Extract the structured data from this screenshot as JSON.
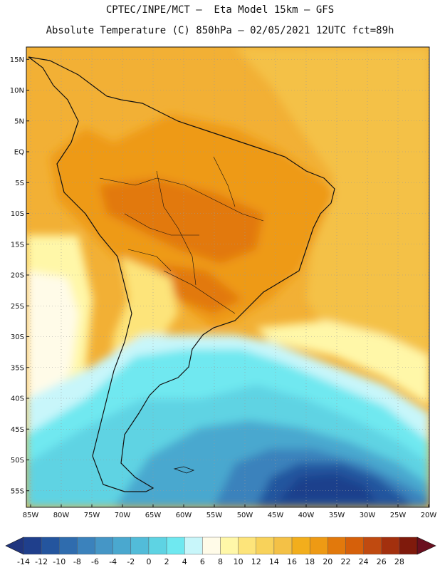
{
  "title_line1": "CPTEC/INPE/MCT –  Eta Model 15km – GFS",
  "title_line2": "Absolute Temperature (C) 850hPa – 02/05/2021 12UTC fct=89h",
  "lat_labels": [
    "15N",
    "10N",
    "5N",
    "EQ",
    "5S",
    "10S",
    "15S",
    "20S",
    "25S",
    "30S",
    "35S",
    "40S",
    "45S",
    "50S",
    "55S"
  ],
  "lon_labels": [
    "85W",
    "80W",
    "75W",
    "70W",
    "65W",
    "60W",
    "55W",
    "50W",
    "45W",
    "40W",
    "35W",
    "30W",
    "25W",
    "20W"
  ],
  "colorbar": {
    "ticks": [
      "-14",
      "-12",
      "-10",
      "-8",
      "-6",
      "-4",
      "-2",
      "0",
      "2",
      "4",
      "6",
      "8",
      "10",
      "12",
      "14",
      "16",
      "18",
      "20",
      "22",
      "24",
      "26",
      "28"
    ],
    "colors": [
      "#1f3f8c",
      "#24559e",
      "#2f6cae",
      "#3b82bc",
      "#4596c6",
      "#4aa8cf",
      "#52bcd9",
      "#5ed3e3",
      "#6fe8f0",
      "#c8f6fa",
      "#fffbe8",
      "#fff7a8",
      "#fde47a",
      "#f8d25a",
      "#f4c146",
      "#f2ae1c",
      "#ee9a14",
      "#e2790c",
      "#d6600a",
      "#c04a10",
      "#a3300e",
      "#7f1a0c"
    ],
    "under_color": "#20357f",
    "over_color": "#6a0f1f"
  },
  "region_colors": {
    "ocean_warm": "#f2b035",
    "ocean_mid": "#f4c146",
    "land_warm": "#ee9a14",
    "land_hot": "#e2790c",
    "andes_cool": "#fde47a",
    "pale": "#fff7a8",
    "cream": "#fffbe8",
    "ice": "#c8f6fa",
    "cyan": "#6fe8f0",
    "sky": "#5ed3e3",
    "blue_mid": "#4aa8cf",
    "blue": "#3b82bc",
    "deep": "#24559e",
    "deepest": "#1f3f8c",
    "coast": "#111111",
    "grid": "#9a9a9a"
  }
}
